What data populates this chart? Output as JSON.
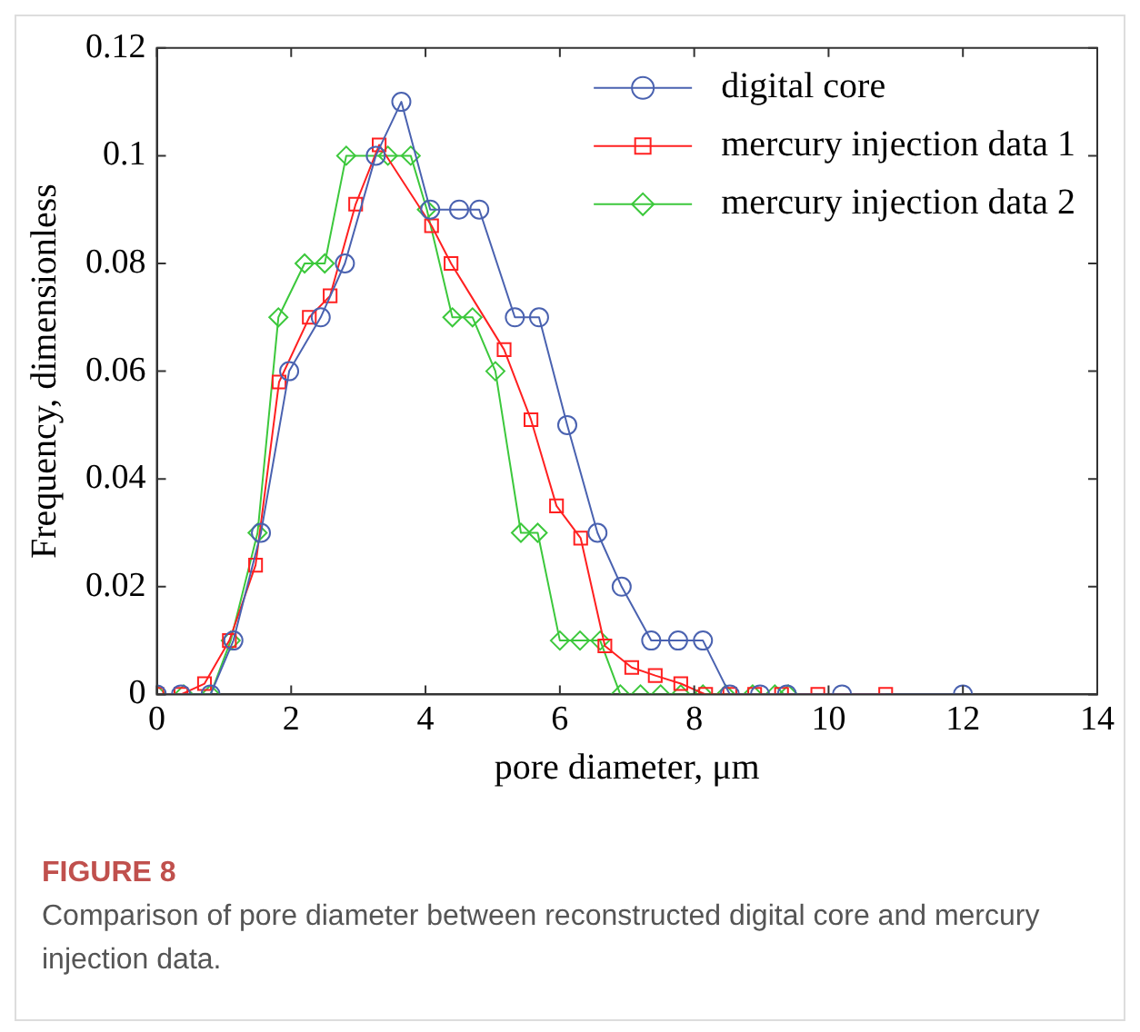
{
  "chart_data": {
    "type": "line",
    "xlabel": "pore diameter, μm",
    "ylabel": "Frequency, dimensionless",
    "xlim": [
      0,
      14
    ],
    "xticks": [
      0,
      2,
      4,
      6,
      8,
      10,
      12,
      14
    ],
    "ylim": [
      0,
      0.12
    ],
    "yticks": [
      0,
      0.02,
      0.04,
      0.06,
      0.08,
      0.1,
      0.12
    ],
    "grid": false,
    "legend": "top right",
    "annotations": [
      "FIGURE 8",
      "Comparison of pore diameter between reconstructed digital core and mercury injection data."
    ],
    "series": [
      {
        "name": "digital core",
        "color": "#4a62b0",
        "marker": "circle",
        "x": [
          0,
          0.36,
          0.8,
          1.14,
          1.55,
          1.97,
          2.44,
          2.8,
          3.26,
          3.64,
          4.07,
          4.5,
          4.8,
          5.33,
          5.69,
          6.11,
          6.56,
          6.92,
          7.36,
          7.76,
          8.13,
          8.53,
          8.98,
          9.38,
          10.2,
          12
        ],
        "values": [
          0,
          0,
          0,
          0.01,
          0.03,
          0.06,
          0.07,
          0.08,
          0.1,
          0.11,
          0.09,
          0.09,
          0.09,
          0.07,
          0.07,
          0.05,
          0.03,
          0.02,
          0.01,
          0.01,
          0.01,
          0,
          0,
          0,
          0,
          0
        ]
      },
      {
        "name": "mercury injection data 1",
        "color": "#ff2020",
        "marker": "square",
        "x": [
          0,
          0.36,
          0.71,
          1.08,
          1.47,
          1.82,
          2.27,
          2.58,
          2.96,
          3.31,
          4.09,
          4.38,
          5.17,
          5.57,
          5.95,
          6.31,
          6.67,
          7.07,
          7.42,
          7.8,
          8.17,
          8.53,
          8.9,
          9.3,
          9.84,
          10.85
        ],
        "values": [
          0,
          0,
          0.002,
          0.01,
          0.024,
          0.058,
          0.07,
          0.074,
          0.091,
          0.102,
          0.087,
          0.08,
          0.064,
          0.051,
          0.035,
          0.029,
          0.009,
          0.005,
          0.0035,
          0.002,
          0,
          0,
          0,
          0,
          0,
          0
        ]
      },
      {
        "name": "mercury injection data 2",
        "color": "#3cc83c",
        "marker": "diamond",
        "x": [
          0,
          0.4,
          0.8,
          1.1,
          1.5,
          1.81,
          2.2,
          2.5,
          2.82,
          3.44,
          3.78,
          4.02,
          4.4,
          4.7,
          5.04,
          5.42,
          5.67,
          6.0,
          6.3,
          6.6,
          6.9,
          7.2,
          7.5,
          7.8,
          8.13,
          8.47,
          8.87,
          9.2,
          9.4
        ],
        "values": [
          0,
          0,
          0,
          0.01,
          0.03,
          0.07,
          0.08,
          0.08,
          0.1,
          0.1,
          0.1,
          0.09,
          0.07,
          0.07,
          0.06,
          0.03,
          0.03,
          0.01,
          0.01,
          0.01,
          0,
          0,
          0,
          0,
          0,
          0,
          0,
          0,
          0
        ]
      }
    ]
  }
}
